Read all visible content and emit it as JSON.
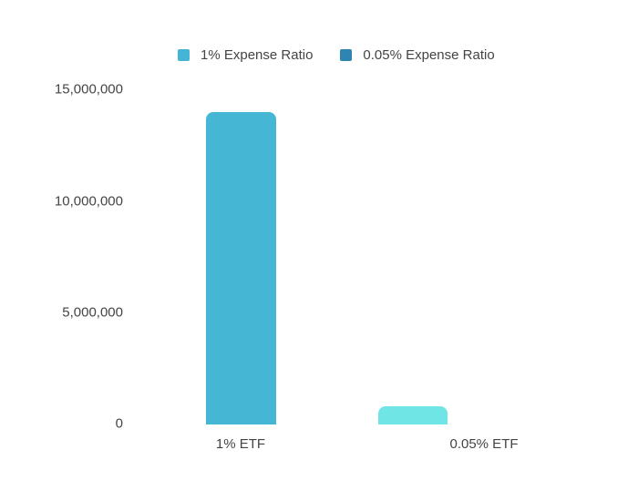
{
  "page": {
    "background": "#ffffff",
    "text_color": "#444444"
  },
  "chart_data": {
    "type": "bar",
    "title": "",
    "xlabel": "",
    "ylabel": "",
    "categories": [
      "1% ETF",
      "0.05% ETF"
    ],
    "values": [
      14000000,
      800000
    ],
    "bar_colors": [
      "#45b6d3",
      "#70e5e5"
    ],
    "legend": [
      {
        "label": "1% Expense Ratio",
        "color": "#44b5d5"
      },
      {
        "label": "0.05% Expense Ratio",
        "color": "#2e86b0"
      }
    ],
    "legend_position": "top-center",
    "ylim": [
      0,
      15000000
    ],
    "ytick_values": [
      0,
      5000000,
      10000000,
      15000000
    ],
    "yticks": [
      "0",
      "5,000,000",
      "10,000,000",
      "15,000,000"
    ],
    "grid": false,
    "background": "#ffffff"
  }
}
